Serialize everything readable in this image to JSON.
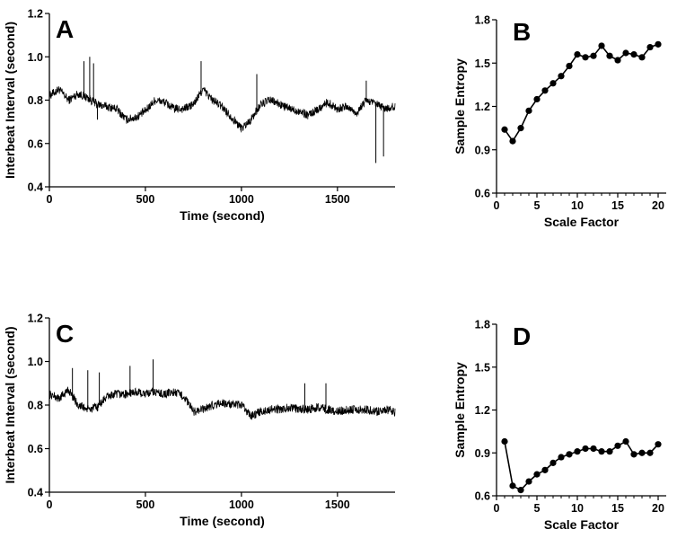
{
  "chart_data": [
    {
      "panel": "A",
      "type": "line",
      "xlabel": "Time (second)",
      "ylabel": "Interbeat Interval (second)",
      "xlim": [
        0,
        1800
      ],
      "ylim": [
        0.4,
        1.2
      ],
      "xticks": [
        0,
        500,
        1000,
        1500
      ],
      "yticks": [
        0.4,
        0.6,
        0.8,
        1.0,
        1.2
      ],
      "line_color": "#000000",
      "x": [
        0,
        50,
        100,
        150,
        200,
        250,
        300,
        350,
        400,
        450,
        500,
        550,
        600,
        650,
        700,
        750,
        800,
        850,
        900,
        950,
        1000,
        1050,
        1100,
        1150,
        1200,
        1250,
        1300,
        1350,
        1400,
        1450,
        1500,
        1550,
        1600,
        1650,
        1700,
        1750,
        1800
      ],
      "y": [
        0.82,
        0.85,
        0.8,
        0.83,
        0.81,
        0.78,
        0.77,
        0.76,
        0.71,
        0.72,
        0.75,
        0.8,
        0.79,
        0.76,
        0.76,
        0.78,
        0.85,
        0.8,
        0.77,
        0.72,
        0.67,
        0.71,
        0.78,
        0.8,
        0.78,
        0.76,
        0.75,
        0.73,
        0.76,
        0.79,
        0.76,
        0.77,
        0.74,
        0.8,
        0.78,
        0.76,
        0.77
      ],
      "spikes": [
        {
          "x": 180,
          "y": 0.98
        },
        {
          "x": 210,
          "y": 1.0
        },
        {
          "x": 230,
          "y": 0.97
        },
        {
          "x": 250,
          "y": 0.71
        },
        {
          "x": 790,
          "y": 0.98
        },
        {
          "x": 1080,
          "y": 0.92
        },
        {
          "x": 1650,
          "y": 0.89
        },
        {
          "x": 1700,
          "y": 0.51
        },
        {
          "x": 1740,
          "y": 0.54
        }
      ]
    },
    {
      "panel": "B",
      "type": "line",
      "xlabel": "Scale Factor",
      "ylabel": "Sample Entropy",
      "xlim": [
        0,
        21
      ],
      "ylim": [
        0.6,
        1.8
      ],
      "xticks": [
        0,
        5,
        10,
        15,
        20
      ],
      "yticks": [
        0.6,
        0.9,
        1.2,
        1.5,
        1.8
      ],
      "marker": "circle",
      "line_color": "#000000",
      "x": [
        1,
        2,
        3,
        4,
        5,
        6,
        7,
        8,
        9,
        10,
        11,
        12,
        13,
        14,
        15,
        16,
        17,
        18,
        19,
        20
      ],
      "y": [
        1.04,
        0.96,
        1.05,
        1.17,
        1.25,
        1.31,
        1.36,
        1.41,
        1.48,
        1.56,
        1.54,
        1.55,
        1.62,
        1.55,
        1.52,
        1.57,
        1.56,
        1.54,
        1.61,
        1.63
      ]
    },
    {
      "panel": "C",
      "type": "line",
      "xlabel": "Time (second)",
      "ylabel": "Interbeat Interval (second)",
      "xlim": [
        0,
        1800
      ],
      "ylim": [
        0.4,
        1.2
      ],
      "xticks": [
        0,
        500,
        1000,
        1500
      ],
      "yticks": [
        0.4,
        0.6,
        0.8,
        1.0,
        1.2
      ],
      "line_color": "#000000",
      "x": [
        0,
        50,
        100,
        150,
        200,
        250,
        300,
        350,
        400,
        450,
        500,
        550,
        600,
        650,
        700,
        750,
        800,
        850,
        900,
        950,
        1000,
        1050,
        1100,
        1150,
        1200,
        1250,
        1300,
        1350,
        1400,
        1450,
        1500,
        1550,
        1600,
        1650,
        1700,
        1750,
        1800
      ],
      "y": [
        0.85,
        0.83,
        0.87,
        0.8,
        0.78,
        0.79,
        0.84,
        0.85,
        0.85,
        0.86,
        0.85,
        0.86,
        0.85,
        0.86,
        0.84,
        0.77,
        0.78,
        0.8,
        0.81,
        0.8,
        0.8,
        0.75,
        0.77,
        0.78,
        0.78,
        0.79,
        0.78,
        0.78,
        0.79,
        0.78,
        0.77,
        0.78,
        0.78,
        0.78,
        0.77,
        0.78,
        0.77
      ],
      "spikes": [
        {
          "x": 120,
          "y": 0.97
        },
        {
          "x": 200,
          "y": 0.96
        },
        {
          "x": 260,
          "y": 0.95
        },
        {
          "x": 420,
          "y": 0.98
        },
        {
          "x": 540,
          "y": 1.01
        },
        {
          "x": 1330,
          "y": 0.9
        },
        {
          "x": 1440,
          "y": 0.9
        }
      ]
    },
    {
      "panel": "D",
      "type": "line",
      "xlabel": "Scale Factor",
      "ylabel": "Sample Entropy",
      "xlim": [
        0,
        21
      ],
      "ylim": [
        0.6,
        1.8
      ],
      "xticks": [
        0,
        5,
        10,
        15,
        20
      ],
      "yticks": [
        0.6,
        0.9,
        1.2,
        1.5,
        1.8
      ],
      "marker": "circle",
      "line_color": "#000000",
      "x": [
        1,
        2,
        3,
        4,
        5,
        6,
        7,
        8,
        9,
        10,
        11,
        12,
        13,
        14,
        15,
        16,
        17,
        18,
        19,
        20
      ],
      "y": [
        0.98,
        0.67,
        0.64,
        0.7,
        0.75,
        0.78,
        0.83,
        0.87,
        0.89,
        0.91,
        0.93,
        0.93,
        0.91,
        0.91,
        0.95,
        0.98,
        0.89,
        0.9,
        0.9,
        0.96
      ]
    }
  ]
}
